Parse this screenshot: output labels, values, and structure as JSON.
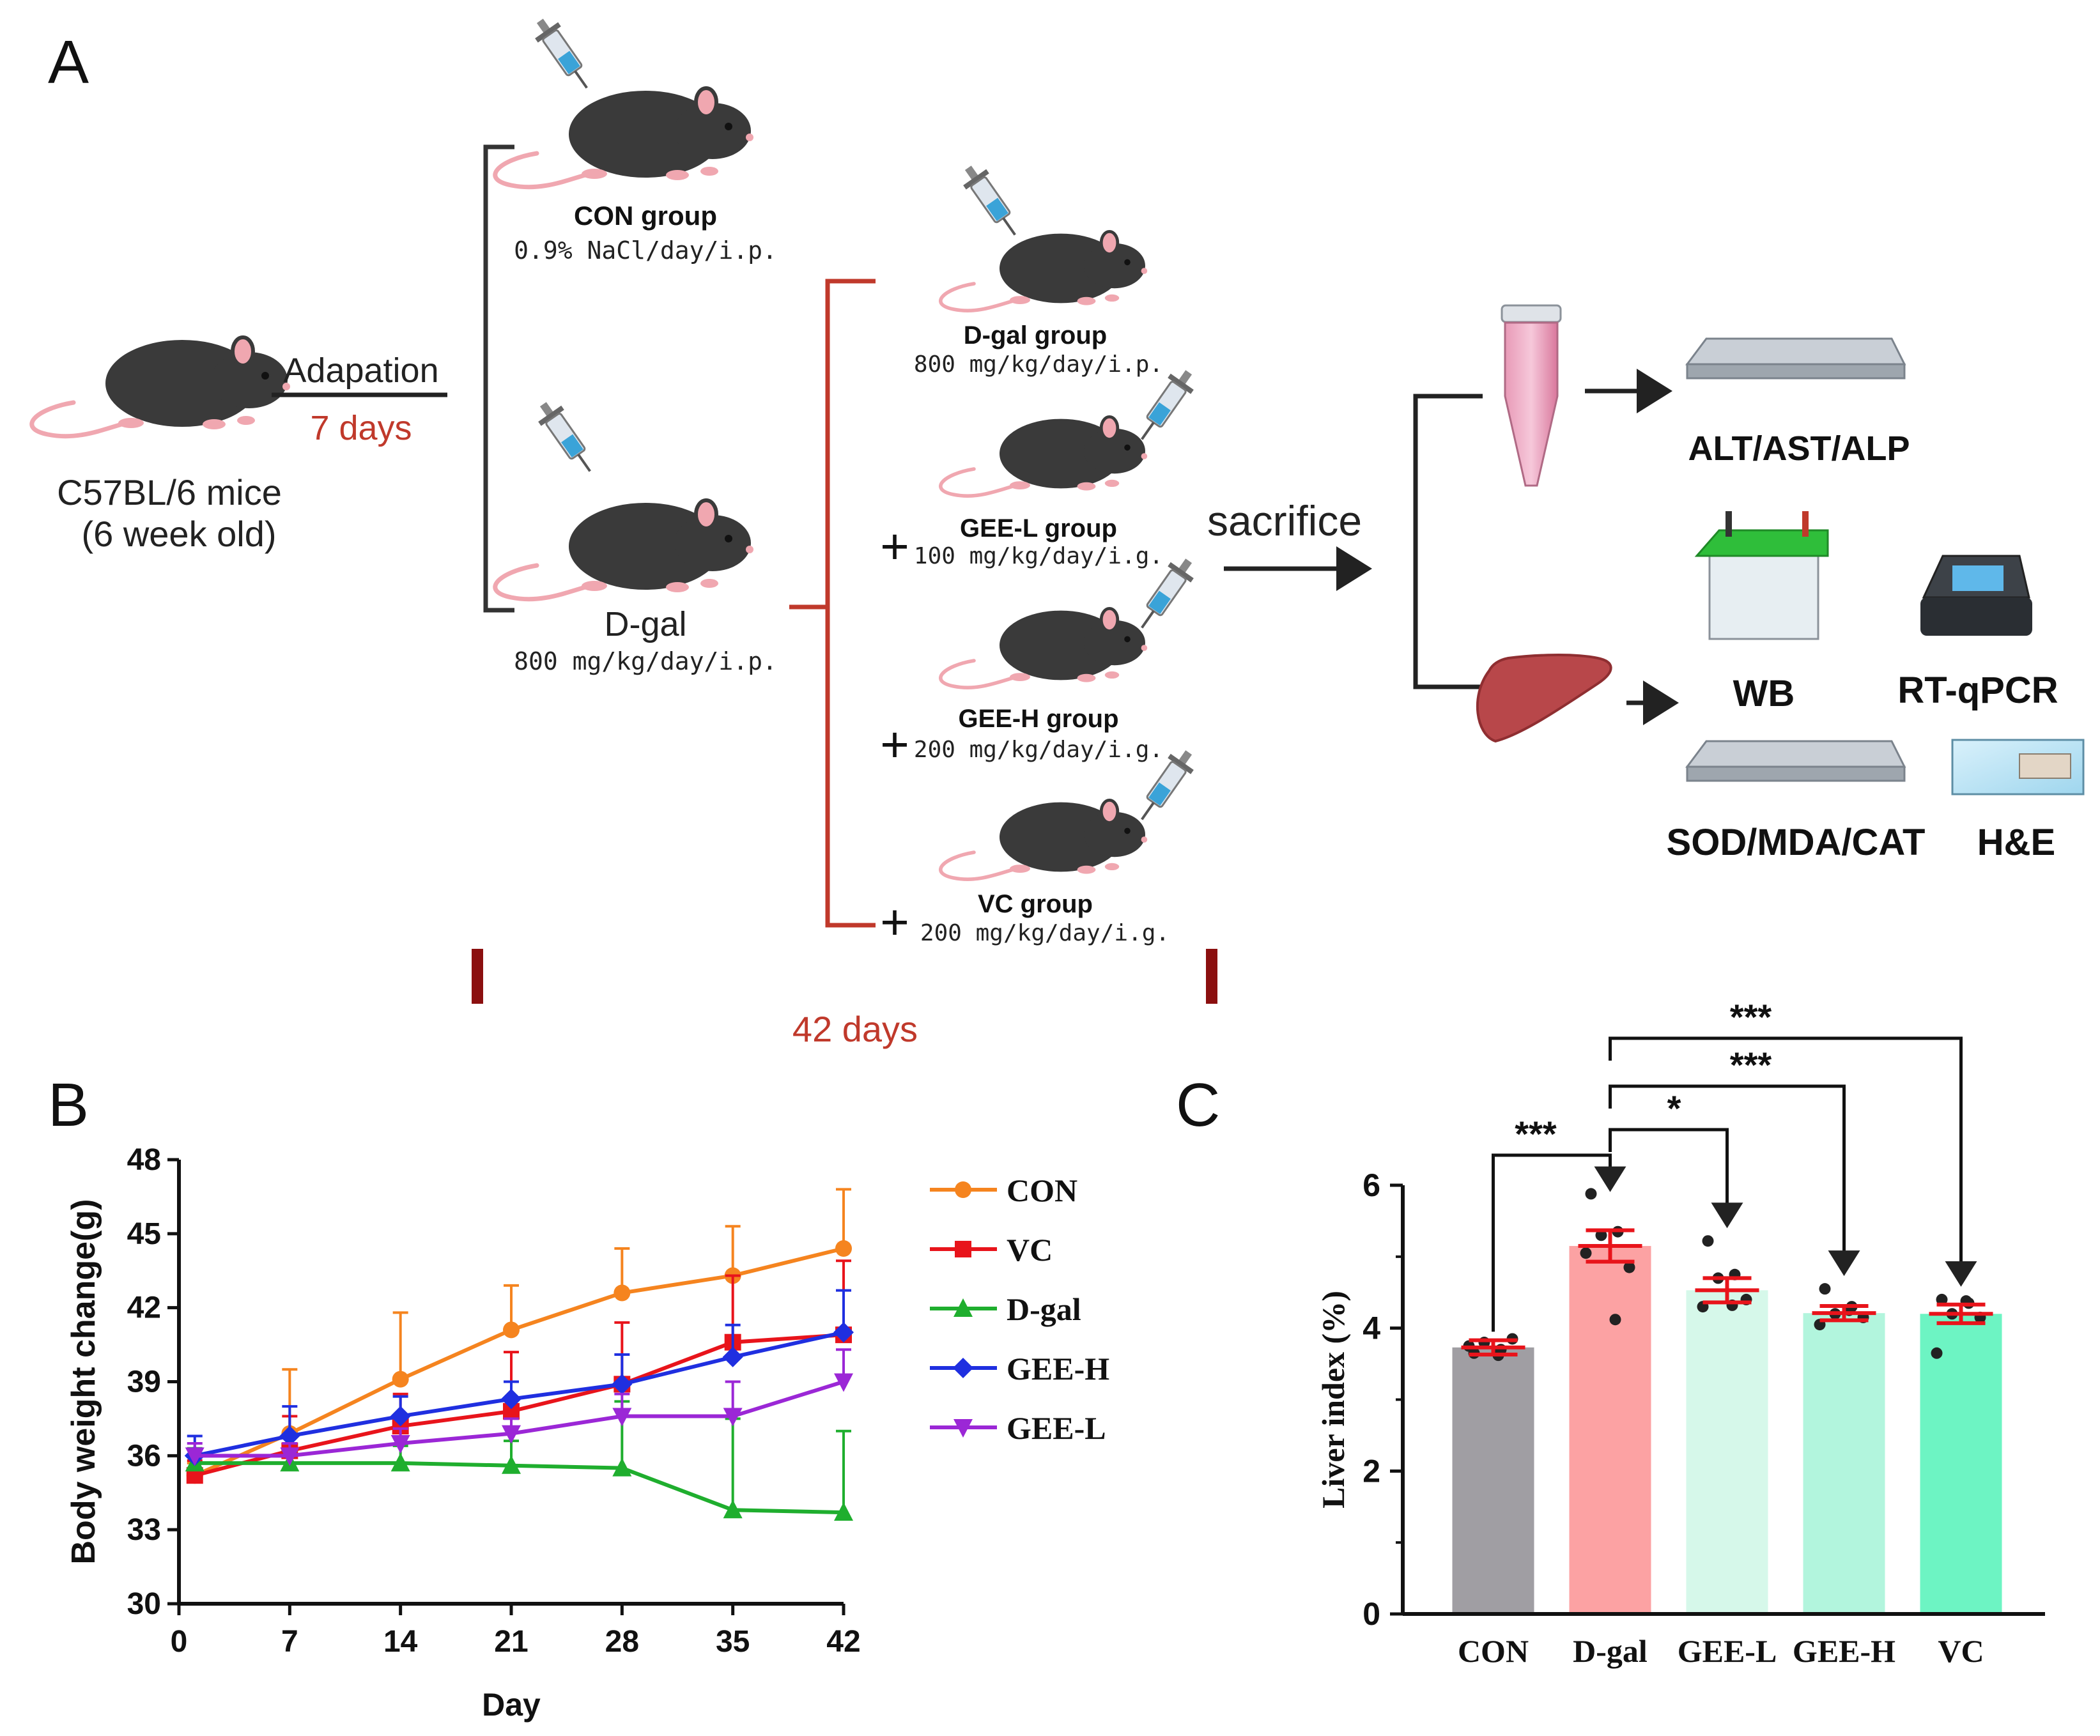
{
  "colors": {
    "dark_red": "#8b0f0f",
    "red_line": "#c0392b",
    "arrow": "#222222",
    "mouse": "#3a3a3a",
    "con": "#f5841f",
    "vc": "#e8141b",
    "dgal": "#1fae2e",
    "geeh": "#1f2fe0",
    "geel": "#9b27d6"
  },
  "panelA": {
    "label": "A",
    "start_mouse": "C57BL/6 mice",
    "start_age": "(6 week old)",
    "adaptation_label": "Adapation",
    "adaptation_days": "7 days",
    "con_title": "CON group",
    "con_dose": "0.9% NaCl/day/i.p.",
    "dgal_title": "D-gal",
    "dgal_dose": "800 mg/kg/day/i.p.",
    "groups": [
      {
        "title": "D-gal group",
        "dose": "800 mg/kg/day/i.p.",
        "plus": ""
      },
      {
        "title": "GEE-L group",
        "dose": "100 mg/kg/day/i.g.",
        "plus": "+"
      },
      {
        "title": "GEE-H group",
        "dose": "200 mg/kg/day/i.g.",
        "plus": "+"
      },
      {
        "title": "VC group",
        "dose": "200 mg/kg/day/i.g.",
        "plus": "+"
      }
    ],
    "duration": "42 days",
    "sacrifice": "sacrifice",
    "outputs": {
      "blood": "ALT/AST/ALP",
      "wb": "WB",
      "rtqpcr": "RT-qPCR",
      "sod": "SOD/MDA/CAT",
      "he": "H&E"
    }
  },
  "panelB": {
    "label": "B"
  },
  "panelC": {
    "label": "C"
  },
  "chart_data": [
    {
      "type": "line",
      "panel": "B",
      "title": "",
      "xlabel": "Day",
      "ylabel": "Body weight change(g)",
      "x": [
        1,
        7,
        14,
        21,
        28,
        35,
        42
      ],
      "xticks": [
        0,
        7,
        14,
        21,
        28,
        35,
        42
      ],
      "yticks": [
        30,
        33,
        36,
        39,
        42,
        45,
        48
      ],
      "xlim": [
        0,
        42
      ],
      "ylim": [
        30,
        48
      ],
      "legend_position": "right",
      "series": [
        {
          "name": "CON",
          "color": "#f5841f",
          "marker": "circle",
          "values": [
            35.2,
            36.9,
            39.1,
            41.1,
            42.6,
            43.3,
            44.4
          ],
          "errors": [
            0.5,
            2.6,
            2.7,
            1.8,
            1.8,
            2.0,
            2.4
          ]
        },
        {
          "name": "VC",
          "color": "#e8141b",
          "marker": "square",
          "values": [
            35.2,
            36.2,
            37.2,
            37.8,
            38.9,
            40.6,
            40.9
          ],
          "errors": [
            0.6,
            1.4,
            1.3,
            2.4,
            2.5,
            2.7,
            3.0
          ]
        },
        {
          "name": "D-gal",
          "color": "#1fae2e",
          "marker": "triangle-up",
          "values": [
            35.7,
            35.7,
            35.7,
            35.6,
            35.5,
            33.8,
            33.7
          ],
          "errors": [
            0.6,
            0.5,
            0.7,
            1.0,
            2.7,
            3.7,
            3.3
          ]
        },
        {
          "name": "GEE-H",
          "color": "#1f2fe0",
          "marker": "diamond",
          "values": [
            36.0,
            36.8,
            37.6,
            38.3,
            38.9,
            40.0,
            41.0
          ],
          "errors": [
            0.8,
            1.2,
            0.8,
            0.7,
            1.2,
            1.3,
            1.7
          ]
        },
        {
          "name": "GEE-L",
          "color": "#9b27d6",
          "marker": "triangle-down",
          "values": [
            36.0,
            36.0,
            36.5,
            36.9,
            37.6,
            37.6,
            39.0
          ],
          "errors": [
            0.5,
            0.5,
            0.6,
            0.6,
            0.9,
            1.4,
            1.3
          ]
        }
      ]
    },
    {
      "type": "bar",
      "panel": "C",
      "title": "",
      "xlabel": "",
      "ylabel": "Liver index (%)",
      "categories": [
        "CON",
        "D-gal",
        "GEE-L",
        "GEE-H",
        "VC"
      ],
      "values": [
        3.73,
        5.15,
        4.53,
        4.21,
        4.2
      ],
      "errors": [
        0.1,
        0.22,
        0.17,
        0.1,
        0.13
      ],
      "colors": [
        "#a09ea3",
        "#fca2a3",
        "#d6f8ea",
        "#b2f5dd",
        "#6df4c3"
      ],
      "points": [
        [
          3.65,
          3.7,
          3.8,
          3.85,
          3.75,
          3.62
        ],
        [
          5.88,
          5.35,
          5.3,
          4.85,
          5.05,
          4.12
        ],
        [
          5.22,
          4.75,
          4.7,
          4.4,
          4.3,
          4.32
        ],
        [
          4.55,
          4.3,
          4.2,
          4.15,
          4.05,
          4.25
        ],
        [
          4.4,
          4.35,
          4.2,
          4.15,
          3.65,
          4.38
        ]
      ],
      "yticks": [
        0,
        2,
        4,
        6
      ],
      "ylim": [
        0,
        6
      ],
      "significance": [
        {
          "from": "CON",
          "to": "D-gal",
          "label": "***"
        },
        {
          "from": "D-gal",
          "to": "GEE-L",
          "label": "*"
        },
        {
          "from": "D-gal",
          "to": "GEE-H",
          "label": "***"
        },
        {
          "from": "D-gal",
          "to": "VC",
          "label": "***"
        }
      ]
    }
  ]
}
